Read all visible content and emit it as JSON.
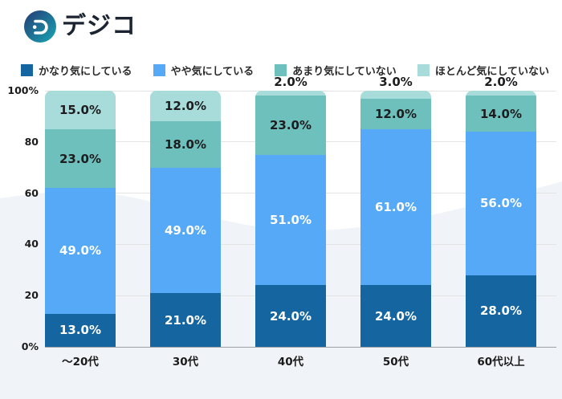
{
  "brand": {
    "name": "デジコ"
  },
  "colors": {
    "background_wave": "#f0f4f9",
    "gridline": "#e4e4e4",
    "axis_line": "#9aa0a6",
    "logo_gradient_start": "#253a73",
    "logo_gradient_end": "#18a7b5"
  },
  "chart_data": {
    "type": "bar",
    "stacked": true,
    "title": "",
    "xlabel": "",
    "ylabel": "",
    "legend_position": "top",
    "grid": true,
    "categories": [
      "～20代",
      "30代",
      "40代",
      "50代",
      "60代以上"
    ],
    "series": [
      {
        "name": "かなり気にしている",
        "color": "#1566a0",
        "label_color": "#ffffff",
        "values": [
          13,
          21,
          24,
          24,
          28
        ]
      },
      {
        "name": "やや気にしている",
        "color": "#56a9f6",
        "label_color": "#ffffff",
        "values": [
          49,
          49,
          51,
          61,
          56
        ]
      },
      {
        "name": "あまり気にしていない",
        "color": "#6ec0bc",
        "label_color": "#1d1d1f",
        "values": [
          23,
          18,
          23,
          12,
          14
        ]
      },
      {
        "name": "ほとんど気にしていない",
        "color": "#a8dcda",
        "label_color": "#1d1d1f",
        "values": [
          15,
          12,
          2,
          3,
          2
        ]
      }
    ],
    "y_axis": {
      "range": [
        0,
        100
      ],
      "ticks": [
        {
          "value": 100,
          "label": "100%"
        },
        {
          "value": 80,
          "label": "80"
        },
        {
          "value": 60,
          "label": "60"
        },
        {
          "value": 40,
          "label": "40"
        },
        {
          "value": 20,
          "label": "20"
        },
        {
          "value": 0,
          "label": "0%"
        }
      ]
    },
    "value_suffix": "%",
    "value_decimals": 1
  }
}
